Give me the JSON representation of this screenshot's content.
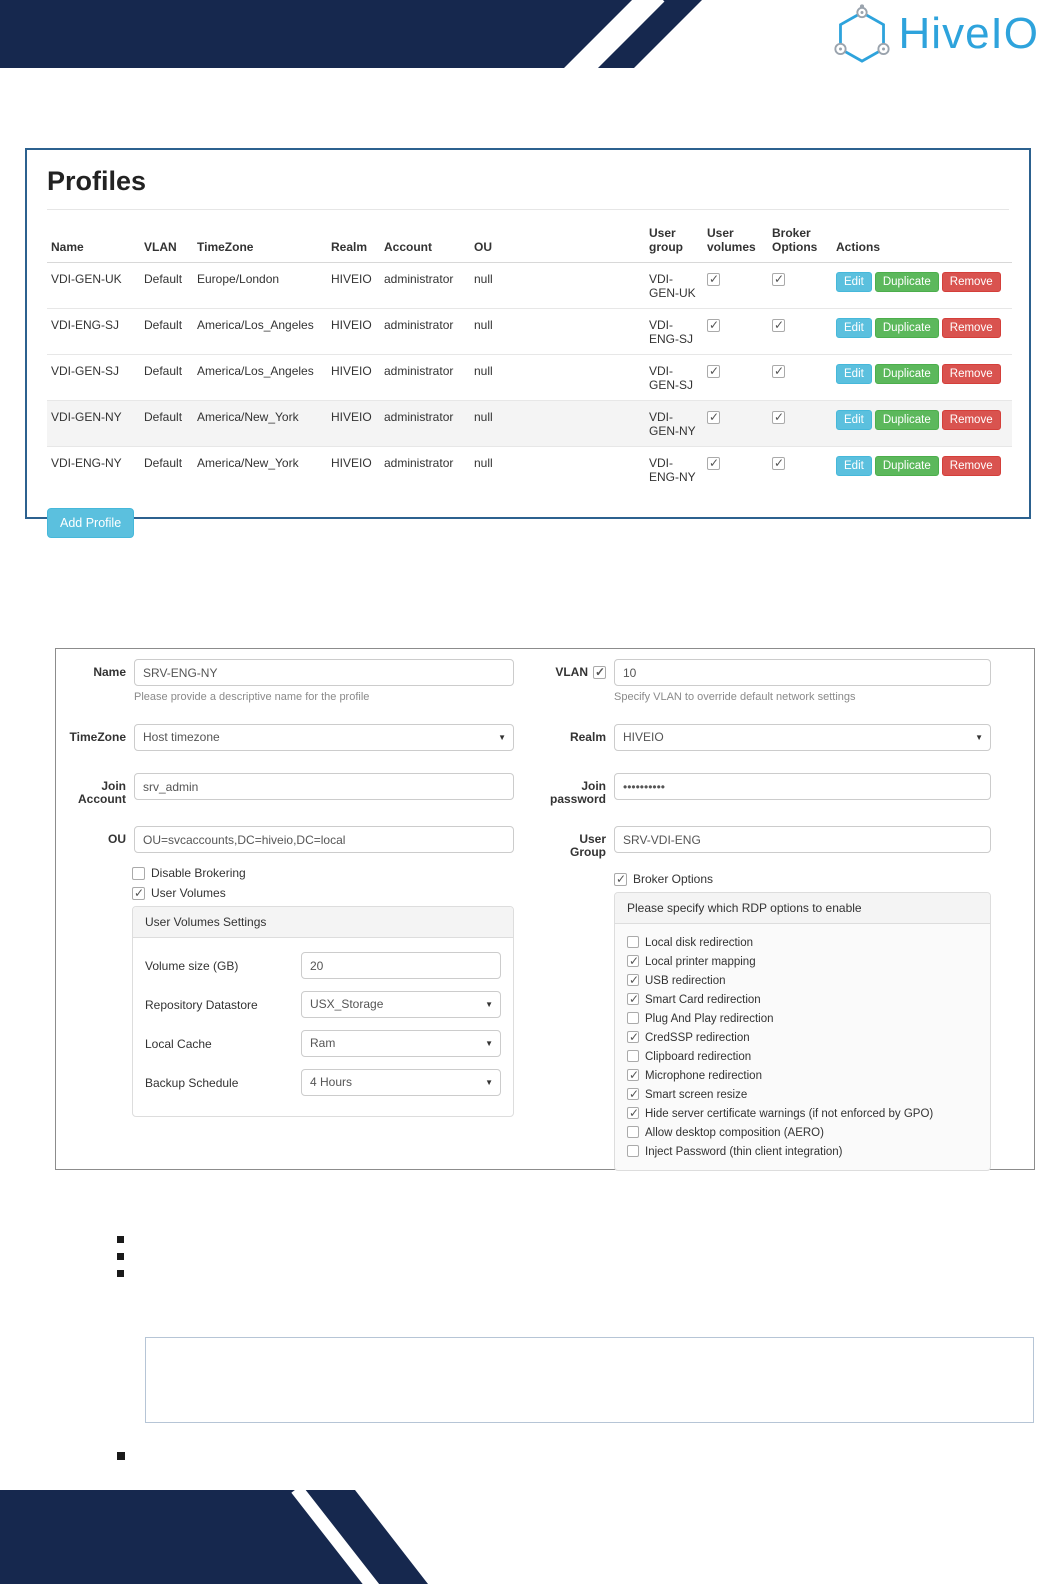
{
  "header": {
    "brand": "HiveIO"
  },
  "profiles_panel": {
    "title": "Profiles",
    "columns": [
      "Name",
      "VLAN",
      "TimeZone",
      "Realm",
      "Account",
      "OU",
      "User group",
      "User volumes",
      "Broker Options",
      "Actions"
    ],
    "action_labels": {
      "edit": "Edit",
      "duplicate": "Duplicate",
      "remove": "Remove"
    },
    "add_profile_label": "Add Profile",
    "rows": [
      {
        "name": "VDI-GEN-UK",
        "vlan": "Default",
        "timezone": "Europe/London",
        "realm": "HIVEIO",
        "account": "administrator",
        "ou": "null",
        "user_group": "VDI-GEN-UK",
        "user_volumes": true,
        "broker_options": true,
        "highlight": false
      },
      {
        "name": "VDI-ENG-SJ",
        "vlan": "Default",
        "timezone": "America/Los_Angeles",
        "realm": "HIVEIO",
        "account": "administrator",
        "ou": "null",
        "user_group": "VDI-ENG-SJ",
        "user_volumes": true,
        "broker_options": true,
        "highlight": false
      },
      {
        "name": "VDI-GEN-SJ",
        "vlan": "Default",
        "timezone": "America/Los_Angeles",
        "realm": "HIVEIO",
        "account": "administrator",
        "ou": "null",
        "user_group": "VDI-GEN-SJ",
        "user_volumes": true,
        "broker_options": true,
        "highlight": false
      },
      {
        "name": "VDI-GEN-NY",
        "vlan": "Default",
        "timezone": "America/New_York",
        "realm": "HIVEIO",
        "account": "administrator",
        "ou": "null",
        "user_group": "VDI-GEN-NY",
        "user_volumes": true,
        "broker_options": true,
        "highlight": true
      },
      {
        "name": "VDI-ENG-NY",
        "vlan": "Default",
        "timezone": "America/New_York",
        "realm": "HIVEIO",
        "account": "administrator",
        "ou": "null",
        "user_group": "VDI-ENG-NY",
        "user_volumes": true,
        "broker_options": true,
        "highlight": false
      }
    ]
  },
  "form": {
    "name": {
      "label": "Name",
      "value": "SRV-ENG-NY",
      "help": "Please provide a descriptive name for the profile"
    },
    "vlan": {
      "label": "VLAN",
      "checked": true,
      "value": "10",
      "help": "Specify VLAN to override default network settings"
    },
    "timezone": {
      "label": "TimeZone",
      "value": "Host timezone"
    },
    "realm": {
      "label": "Realm",
      "value": "HIVEIO"
    },
    "join_account": {
      "label": "Join Account",
      "value": "srv_admin"
    },
    "join_password": {
      "label": "Join password",
      "value": "••••••••••"
    },
    "ou": {
      "label": "OU",
      "value": "OU=svcaccounts,DC=hiveio,DC=local"
    },
    "user_group": {
      "label": "User Group",
      "value": "SRV-VDI-ENG"
    },
    "disable_brokering": {
      "label": "Disable Brokering",
      "checked": false
    },
    "user_volumes": {
      "label": "User Volumes",
      "checked": true
    },
    "user_volumes_settings": {
      "title": "User Volumes Settings",
      "volume_size": {
        "label": "Volume size (GB)",
        "value": "20"
      },
      "repository_datastore": {
        "label": "Repository Datastore",
        "value": "USX_Storage"
      },
      "local_cache": {
        "label": "Local Cache",
        "value": "Ram"
      },
      "backup_schedule": {
        "label": "Backup Schedule",
        "value": "4 Hours"
      }
    },
    "broker_options": {
      "label": "Broker Options",
      "checked": true,
      "panel_title": "Please specify which RDP options to enable",
      "options": [
        {
          "label": "Local disk redirection",
          "checked": false
        },
        {
          "label": "Local printer mapping",
          "checked": true
        },
        {
          "label": "USB redirection",
          "checked": true
        },
        {
          "label": "Smart Card redirection",
          "checked": true
        },
        {
          "label": "Plug And Play redirection",
          "checked": false
        },
        {
          "label": "CredSSP redirection",
          "checked": true
        },
        {
          "label": "Clipboard redirection",
          "checked": false
        },
        {
          "label": "Microphone redirection",
          "checked": true
        },
        {
          "label": "Smart screen resize",
          "checked": true
        },
        {
          "label": "Hide server certificate warnings (if not enforced by GPO)",
          "checked": true
        },
        {
          "label": "Allow desktop composition (AERO)",
          "checked": false
        },
        {
          "label": "Inject Password (thin client integration)",
          "checked": false
        }
      ]
    }
  },
  "colors": {
    "navy": "#16284e",
    "brand_blue": "#2ea3dc",
    "edit_button": "#5bc0de",
    "duplicate_button": "#5cb85c",
    "remove_button": "#d9534f",
    "panel_border": "#2c618f"
  },
  "icons": {
    "bullet": "■",
    "caret": "▼",
    "check": "✓"
  }
}
